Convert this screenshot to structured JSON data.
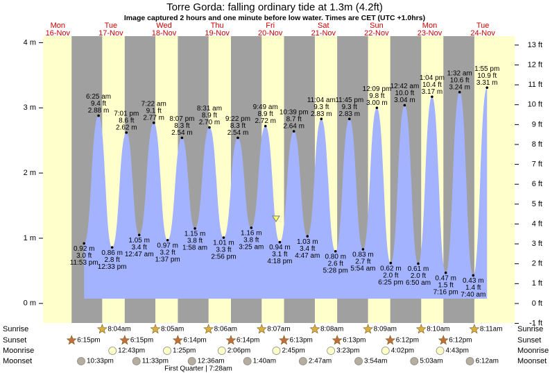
{
  "chart_data": {
    "type": "tide",
    "title": "Torre Gorda: falling  ordinary tide at 1.3m (4.2ft)",
    "subtitle": "Image captured 2 hours and one minute before low water. Times are CET (UTC +1.0hrs)",
    "ylim": [
      -0.3,
      4.1
    ],
    "yticks": [
      {
        "value": 0,
        "label": "0 m"
      },
      {
        "value": 1,
        "label": "1 m"
      },
      {
        "value": 2,
        "label": "2 m"
      },
      {
        "value": 3,
        "label": "3 m"
      },
      {
        "value": 4,
        "label": "4 m"
      }
    ],
    "y2lim": [
      -0.98,
      13.45
    ],
    "y2ticks": [
      {
        "value": -1,
        "label": "-1 ft"
      },
      {
        "value": 0,
        "label": "0 ft"
      },
      {
        "value": 1,
        "label": "1 ft"
      },
      {
        "value": 2,
        "label": "2 ft"
      },
      {
        "value": 3,
        "label": "3 ft"
      },
      {
        "value": 4,
        "label": "4 ft"
      },
      {
        "value": 5,
        "label": "5 ft"
      },
      {
        "value": 6,
        "label": "6 ft"
      },
      {
        "value": 7,
        "label": "7 ft"
      },
      {
        "value": 8,
        "label": "8 ft"
      },
      {
        "value": 9,
        "label": "9 ft"
      },
      {
        "value": 10,
        "label": "10 ft"
      },
      {
        "value": 11,
        "label": "11 ft"
      },
      {
        "value": 12,
        "label": "12 ft"
      },
      {
        "value": 13,
        "label": "13 ft"
      }
    ],
    "colors": {
      "day": "#ffffcc",
      "night": "#a0a0a0",
      "water": "#a3b3ff",
      "date": "#cc0000"
    },
    "row_labels": {
      "sunrise": "Sunrise",
      "sunset": "Sunset",
      "moonrise": "Moonrise",
      "moonset": "Moonset"
    },
    "moon_phase": "First Quarter | 7:28am",
    "days": [
      {
        "weekday": "Mon",
        "date": "16-Nov",
        "sunset": "6:15pm",
        "moonset": "10:33pm",
        "tides": [
          {
            "time": "11:53 pm",
            "height": 0.92,
            "height_label": "0.92 m",
            "feet_label": "3.0 ft"
          }
        ]
      },
      {
        "weekday": "Tue",
        "date": "17-Nov",
        "sunrise": "8:04am",
        "sunset": "6:15pm",
        "moonrise": "12:43pm",
        "moonset": "11:33pm",
        "tides": [
          {
            "time": "6:25 am",
            "height": 2.88,
            "height_label": "2.88 m",
            "feet_label": "9.4 ft"
          },
          {
            "time": "12:33 pm",
            "height": 0.86,
            "height_label": "0.86 m",
            "feet_label": "2.8 ft"
          },
          {
            "time": "7:01 pm",
            "height": 2.62,
            "height_label": "2.62 m",
            "feet_label": "8.6 ft"
          }
        ]
      },
      {
        "weekday": "Wed",
        "date": "18-Nov",
        "sunrise": "8:05am",
        "sunset": "6:14pm",
        "moonrise": "1:25pm",
        "tides": [
          {
            "time": "12:47 am",
            "height": 1.05,
            "height_label": "1.05 m",
            "feet_label": "3.4 ft"
          },
          {
            "time": "7:22 am",
            "height": 2.77,
            "height_label": "2.77 m",
            "feet_label": "9.1 ft"
          },
          {
            "time": "1:37 pm",
            "height": 0.97,
            "height_label": "0.97 m",
            "feet_label": "3.2 ft"
          },
          {
            "time": "8:07 pm",
            "height": 2.54,
            "height_label": "2.54 m",
            "feet_label": "8.3 ft"
          }
        ]
      },
      {
        "weekday": "Thu",
        "date": "19-Nov",
        "sunrise": "8:06am",
        "sunset": "6:14pm",
        "moonrise": "2:06pm",
        "moonset": "12:36am",
        "tides": [
          {
            "time": "1:58 am",
            "height": 1.15,
            "height_label": "1.15 m",
            "feet_label": "3.8 ft"
          },
          {
            "time": "8:31 am",
            "height": 2.7,
            "height_label": "2.70 m",
            "feet_label": "8.9 ft"
          },
          {
            "time": "2:56 pm",
            "height": 1.01,
            "height_label": "1.01 m",
            "feet_label": "3.3 ft"
          },
          {
            "time": "9:22 pm",
            "height": 2.54,
            "height_label": "2.54 m",
            "feet_label": "8.3 ft"
          }
        ]
      },
      {
        "weekday": "Fri",
        "date": "20-Nov",
        "sunrise": "8:07am",
        "sunset": "6:13pm",
        "moonrise": "2:45pm",
        "moonset": "1:40am",
        "tides": [
          {
            "time": "3:25 am",
            "height": 1.16,
            "height_label": "1.16 m",
            "feet_label": "3.8 ft"
          },
          {
            "time": "9:49 am",
            "height": 2.72,
            "height_label": "2.72 m",
            "feet_label": "8.9 ft"
          },
          {
            "time": "4:18 pm",
            "height": 0.94,
            "height_label": "0.94 m",
            "feet_label": "3.1 ft"
          },
          {
            "time": "10:39 pm",
            "height": 2.64,
            "height_label": "2.64 m",
            "feet_label": "8.7 ft"
          }
        ]
      },
      {
        "weekday": "Sat",
        "date": "21-Nov",
        "sunrise": "8:08am",
        "sunset": "6:13pm",
        "moonrise": "3:23pm",
        "moonset": "2:47am",
        "tides": [
          {
            "time": "4:47 am",
            "height": 1.03,
            "height_label": "1.03 m",
            "feet_label": "3.4 ft"
          },
          {
            "time": "11:04 am",
            "height": 2.83,
            "height_label": "2.83 m",
            "feet_label": "9.3 ft"
          },
          {
            "time": "5:28 pm",
            "height": 0.8,
            "height_label": "0.80 m",
            "feet_label": "2.6 ft"
          },
          {
            "time": "11:45 pm",
            "height": 2.83,
            "height_label": "2.83 m",
            "feet_label": "9.3 ft"
          }
        ]
      },
      {
        "weekday": "Sun",
        "date": "22-Nov",
        "sunrise": "8:09am",
        "sunset": "6:12pm",
        "moonrise": "4:02pm",
        "moonset": "3:54am",
        "tides": [
          {
            "time": "5:54 am",
            "height": 0.83,
            "height_label": "0.83 m",
            "feet_label": "2.7 ft"
          },
          {
            "time": "12:09 pm",
            "height": 3.0,
            "height_label": "3.00 m",
            "feet_label": "9.8 ft"
          },
          {
            "time": "6:25 pm",
            "height": 0.62,
            "height_label": "0.62 m",
            "feet_label": "2.0 ft"
          }
        ]
      },
      {
        "weekday": "Mon",
        "date": "23-Nov",
        "sunrise": "8:10am",
        "sunset": "6:12pm",
        "moonrise": "4:43pm",
        "moonset": "5:03am",
        "tides": [
          {
            "time": "12:42 am",
            "height": 3.04,
            "height_label": "3.04 m",
            "feet_label": "10.0 ft"
          },
          {
            "time": "6:50 am",
            "height": 0.61,
            "height_label": "0.61 m",
            "feet_label": "2.0 ft"
          },
          {
            "time": "1:04 pm",
            "height": 3.17,
            "height_label": "3.17 m",
            "feet_label": "10.4 ft"
          },
          {
            "time": "7:16 pm",
            "height": 0.47,
            "height_label": "0.47 m",
            "feet_label": "1.5 ft"
          }
        ]
      },
      {
        "weekday": "Tue",
        "date": "24-Nov",
        "sunrise": "8:11am",
        "moonset": "6:12am",
        "tides": [
          {
            "time": "1:32 am",
            "height": 3.24,
            "height_label": "3.24 m",
            "feet_label": "10.6 ft"
          },
          {
            "time": "7:40 am",
            "height": 0.43,
            "height_label": "0.43 m",
            "feet_label": "1.4 ft"
          },
          {
            "time": "1:55 pm",
            "height": 3.31,
            "height_label": "3.31 m",
            "feet_label": "10.9 ft"
          }
        ]
      }
    ]
  }
}
